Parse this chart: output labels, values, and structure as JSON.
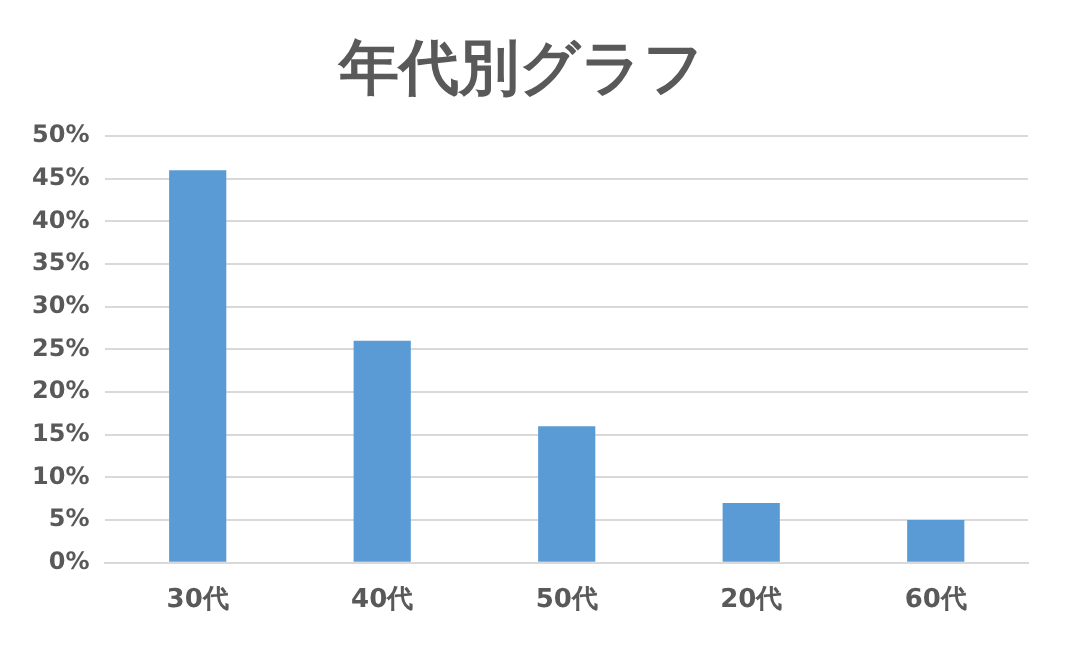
{
  "chart_data": {
    "type": "bar",
    "title": "年代別グラフ",
    "categories": [
      "30代",
      "40代",
      "50代",
      "20代",
      "60代"
    ],
    "values": [
      46,
      26,
      16,
      7,
      5
    ],
    "color": "#5b9bd5",
    "ylim": [
      0,
      50
    ],
    "yticks": [
      {
        "value": 0,
        "label": "0%"
      },
      {
        "value": 5,
        "label": "5%"
      },
      {
        "value": 10,
        "label": "10%"
      },
      {
        "value": 15,
        "label": "15%"
      },
      {
        "value": 20,
        "label": "20%"
      },
      {
        "value": 25,
        "label": "25%"
      },
      {
        "value": 30,
        "label": "30%"
      },
      {
        "value": 35,
        "label": "35%"
      },
      {
        "value": 40,
        "label": "40%"
      },
      {
        "value": 45,
        "label": "45%"
      },
      {
        "value": 50,
        "label": "50%"
      }
    ],
    "grid": "y"
  }
}
